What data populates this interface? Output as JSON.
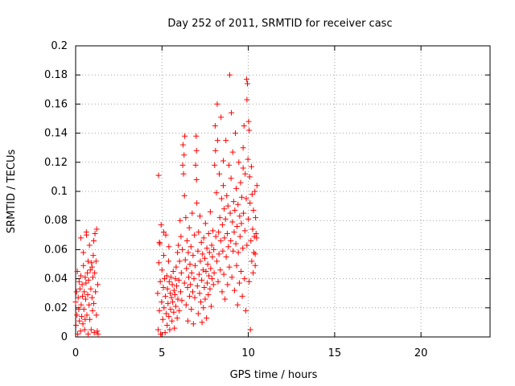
{
  "chart_data": {
    "type": "scatter",
    "title": "Day 252 of 2011, SRMTID for receiver casc",
    "xlabel": "GPS time / hours",
    "ylabel": "SRMTID / TECUs",
    "xlim": [
      0,
      24
    ],
    "ylim": [
      0,
      0.2
    ],
    "x_ticks": [
      0,
      5,
      10,
      15,
      20
    ],
    "x_tick_labels": [
      "0",
      "5",
      "10",
      "15",
      "20"
    ],
    "y_ticks": [
      0,
      0.02,
      0.04,
      0.06,
      0.08,
      0.1,
      0.12,
      0.14,
      0.16,
      0.18,
      0.2
    ],
    "y_tick_labels": [
      "0",
      "0.02",
      "0.04",
      "0.06",
      "0.08",
      "0.1",
      "0.12",
      "0.14",
      "0.16",
      "0.18",
      "0.2"
    ],
    "grid": true,
    "marker": "+",
    "colors": {
      "points": "#ff0000",
      "grid": "#a0a0a0",
      "axes": "#000000"
    },
    "series": [
      {
        "name": "SRMTID",
        "points": [
          [
            0.0,
            0.024
          ],
          [
            0.02,
            0.008
          ],
          [
            0.05,
            0.031
          ],
          [
            0.08,
            0.015
          ],
          [
            0.1,
            0.045
          ],
          [
            0.12,
            0.002
          ],
          [
            0.15,
            0.027
          ],
          [
            0.18,
            0.019
          ],
          [
            0.2,
            0.038
          ],
          [
            0.22,
            0.011
          ],
          [
            0.25,
            0.033
          ],
          [
            0.28,
            0.004
          ],
          [
            0.3,
            0.042
          ],
          [
            0.32,
            0.022
          ],
          [
            0.35,
            0.014
          ],
          [
            0.38,
            0.036
          ],
          [
            0.4,
            0.028
          ],
          [
            0.42,
            0.009
          ],
          [
            0.45,
            0.049
          ],
          [
            0.48,
            0.019
          ],
          [
            0.5,
            0.031
          ],
          [
            0.52,
            0.005
          ],
          [
            0.55,
            0.041
          ],
          [
            0.58,
            0.026
          ],
          [
            0.6,
            0.037
          ],
          [
            0.62,
            0.072
          ],
          [
            0.63,
            0.07
          ],
          [
            0.65,
            0.015
          ],
          [
            0.68,
            0.044
          ],
          [
            0.7,
            0.029
          ],
          [
            0.72,
            0.002
          ],
          [
            0.75,
            0.039
          ],
          [
            0.78,
            0.022
          ],
          [
            0.8,
            0.063
          ],
          [
            0.82,
            0.012
          ],
          [
            0.85,
            0.046
          ],
          [
            0.88,
            0.033
          ],
          [
            0.9,
            0.005
          ],
          [
            0.92,
            0.051
          ],
          [
            0.95,
            0.027
          ],
          [
            0.98,
            0.018
          ],
          [
            1.0,
            0.041
          ],
          [
            1.02,
            0.056
          ],
          [
            1.05,
            0.023
          ],
          [
            1.08,
            0.003
          ],
          [
            1.1,
            0.044
          ],
          [
            1.12,
            0.071
          ],
          [
            1.15,
            0.031
          ],
          [
            1.18,
            0.052
          ],
          [
            1.2,
            0.015
          ],
          [
            1.22,
            0.074
          ],
          [
            1.25,
            0.004
          ],
          [
            1.28,
            0.036
          ],
          [
            1.3,
            0.002
          ],
          [
            0.3,
            0.068
          ],
          [
            0.45,
            0.058
          ],
          [
            0.55,
            0.012
          ],
          [
            0.72,
            0.052
          ],
          [
            0.95,
            0.048
          ],
          [
            1.05,
            0.066
          ],
          [
            4.75,
            0.03
          ],
          [
            4.78,
            0.005
          ],
          [
            4.8,
            0.111
          ],
          [
            4.82,
            0.051
          ],
          [
            4.85,
            0.018
          ],
          [
            4.88,
            0.064
          ],
          [
            4.9,
            0.038
          ],
          [
            4.92,
            0.002
          ],
          [
            4.95,
            0.077
          ],
          [
            4.98,
            0.024
          ],
          [
            5.0,
            0.046
          ],
          [
            5.05,
            0.012
          ],
          [
            5.08,
            0.034
          ],
          [
            5.1,
            0.056
          ],
          [
            5.12,
            0.02
          ],
          [
            5.15,
            0.04
          ],
          [
            5.18,
            0.003
          ],
          [
            5.2,
            0.028
          ],
          [
            5.22,
            0.07
          ],
          [
            5.25,
            0.016
          ],
          [
            5.28,
            0.042
          ],
          [
            5.3,
            0.008
          ],
          [
            5.32,
            0.033
          ],
          [
            5.35,
            0.023
          ],
          [
            5.38,
            0.052
          ],
          [
            5.4,
            0.014
          ],
          [
            5.42,
            0.038
          ],
          [
            5.45,
            0.005
          ],
          [
            5.48,
            0.03
          ],
          [
            5.5,
            0.019
          ],
          [
            5.52,
            0.041
          ],
          [
            5.55,
            0.027
          ],
          [
            5.58,
            0.011
          ],
          [
            5.6,
            0.036
          ],
          [
            5.62,
            0.024
          ],
          [
            5.65,
            0.045
          ],
          [
            5.68,
            0.017
          ],
          [
            5.7,
            0.032
          ],
          [
            5.72,
            0.006
          ],
          [
            5.75,
            0.029
          ],
          [
            5.78,
            0.04
          ],
          [
            5.8,
            0.021
          ],
          [
            5.82,
            0.048
          ],
          [
            5.85,
            0.035
          ],
          [
            5.88,
            0.013
          ],
          [
            5.9,
            0.058
          ],
          [
            5.92,
            0.026
          ],
          [
            5.95,
            0.063
          ],
          [
            5.98,
            0.039
          ],
          [
            6.0,
            0.018
          ],
          [
            6.02,
            0.052
          ],
          [
            6.05,
            0.08
          ],
          [
            6.08,
            0.031
          ],
          [
            6.1,
            0.069
          ],
          [
            6.12,
            0.044
          ],
          [
            6.15,
            0.025
          ],
          [
            6.18,
            0.06
          ],
          [
            6.2,
            0.118
          ],
          [
            6.22,
            0.132
          ],
          [
            6.25,
            0.112
          ],
          [
            6.28,
            0.125
          ],
          [
            6.3,
            0.037
          ],
          [
            6.32,
            0.138
          ],
          [
            6.35,
            0.053
          ],
          [
            6.38,
            0.082
          ],
          [
            6.4,
            0.022
          ],
          [
            6.42,
            0.047
          ],
          [
            6.45,
            0.066
          ],
          [
            6.48,
            0.034
          ],
          [
            6.5,
            0.011
          ],
          [
            6.52,
            0.058
          ],
          [
            6.55,
            0.041
          ],
          [
            6.58,
            0.075
          ],
          [
            6.6,
            0.028
          ],
          [
            6.62,
            0.05
          ],
          [
            6.65,
            0.036
          ],
          [
            6.68,
            0.062
          ],
          [
            6.7,
            0.019
          ],
          [
            6.72,
            0.044
          ],
          [
            6.75,
            0.085
          ],
          [
            6.78,
            0.031
          ],
          [
            6.8,
            0.056
          ],
          [
            6.82,
            0.009
          ],
          [
            6.85,
            0.04
          ],
          [
            6.88,
            0.07
          ],
          [
            6.9,
            0.027
          ],
          [
            6.92,
            0.049
          ],
          [
            6.95,
            0.118
          ],
          [
            6.98,
            0.138
          ],
          [
            7.0,
            0.128
          ],
          [
            7.02,
            0.092
          ],
          [
            7.05,
            0.035
          ],
          [
            7.08,
            0.059
          ],
          [
            7.1,
            0.016
          ],
          [
            7.12,
            0.072
          ],
          [
            7.15,
            0.043
          ],
          [
            7.18,
            0.03
          ],
          [
            7.2,
            0.083
          ],
          [
            7.22,
            0.052
          ],
          [
            7.25,
            0.024
          ],
          [
            7.28,
            0.065
          ],
          [
            7.3,
            0.039
          ],
          [
            7.32,
            0.01
          ],
          [
            7.35,
            0.057
          ],
          [
            7.38,
            0.046
          ],
          [
            7.4,
            0.02
          ],
          [
            7.42,
            0.068
          ],
          [
            7.45,
            0.034
          ],
          [
            7.48,
            0.054
          ],
          [
            7.5,
            0.026
          ],
          [
            7.52,
            0.078
          ],
          [
            7.55,
            0.045
          ],
          [
            7.58,
            0.013
          ],
          [
            7.6,
            0.061
          ],
          [
            7.62,
            0.037
          ],
          [
            7.65,
            0.05
          ],
          [
            7.68,
            0.029
          ],
          [
            7.7,
            0.071
          ],
          [
            7.72,
            0.042
          ],
          [
            7.75,
            0.058
          ],
          [
            7.78,
            0.033
          ],
          [
            7.8,
            0.086
          ],
          [
            7.82,
            0.047
          ],
          [
            7.85,
            0.021
          ],
          [
            7.88,
            0.063
          ],
          [
            7.9,
            0.04
          ],
          [
            7.92,
            0.055
          ],
          [
            7.95,
            0.073
          ],
          [
            7.98,
            0.036
          ],
          [
            8.0,
            0.06
          ],
          [
            8.02,
            0.044
          ],
          [
            8.05,
            0.118
          ],
          [
            8.08,
            0.145
          ],
          [
            8.1,
            0.128
          ],
          [
            8.12,
            0.069
          ],
          [
            8.15,
            0.099
          ],
          [
            8.18,
            0.052
          ],
          [
            8.2,
            0.16
          ],
          [
            8.22,
            0.135
          ],
          [
            8.25,
            0.038
          ],
          [
            8.28,
            0.072
          ],
          [
            8.3,
            0.057
          ],
          [
            8.32,
            0.112
          ],
          [
            8.35,
            0.082
          ],
          [
            8.38,
            0.046
          ],
          [
            8.4,
            0.066
          ],
          [
            8.42,
            0.151
          ],
          [
            8.45,
            0.095
          ],
          [
            8.48,
            0.031
          ],
          [
            8.5,
            0.077
          ],
          [
            8.52,
            0.059
          ],
          [
            8.55,
            0.104
          ],
          [
            8.58,
            0.043
          ],
          [
            8.6,
            0.088
          ],
          [
            8.62,
            0.068
          ],
          [
            8.65,
            0.026
          ],
          [
            8.68,
            0.081
          ],
          [
            8.7,
            0.135
          ],
          [
            8.72,
            0.055
          ],
          [
            8.75,
            0.097
          ],
          [
            8.78,
            0.071
          ],
          [
            8.8,
            0.036
          ],
          [
            8.82,
            0.09
          ],
          [
            8.85,
            0.062
          ],
          [
            8.88,
            0.118
          ],
          [
            8.9,
            0.048
          ],
          [
            8.92,
            0.18
          ],
          [
            8.95,
            0.085
          ],
          [
            8.98,
            0.066
          ],
          [
            9.0,
            0.109
          ],
          [
            9.02,
            0.154
          ],
          [
            9.05,
            0.041
          ],
          [
            9.08,
            0.079
          ],
          [
            9.1,
            0.127
          ],
          [
            9.12,
            0.059
          ],
          [
            9.15,
            0.093
          ],
          [
            9.18,
            0.072
          ],
          [
            9.2,
            0.032
          ],
          [
            9.22,
            0.087
          ],
          [
            9.25,
            0.14
          ],
          [
            9.28,
            0.064
          ],
          [
            9.3,
            0.102
          ],
          [
            9.32,
            0.049
          ],
          [
            9.35,
            0.076
          ],
          [
            9.38,
            0.022
          ],
          [
            9.4,
            0.091
          ],
          [
            9.42,
            0.058
          ],
          [
            9.45,
            0.12
          ],
          [
            9.48,
            0.037
          ],
          [
            9.5,
            0.083
          ],
          [
            9.52,
            0.069
          ],
          [
            9.55,
            0.106
          ],
          [
            9.58,
            0.045
          ],
          [
            9.6,
            0.078
          ],
          [
            9.62,
            0.096
          ],
          [
            9.65,
            0.028
          ],
          [
            9.68,
            0.061
          ],
          [
            9.7,
            0.116
          ],
          [
            9.72,
            0.085
          ],
          [
            9.75,
            0.145
          ],
          [
            9.78,
            0.04
          ],
          [
            9.8,
            0.073
          ],
          [
            9.82,
            0.112
          ],
          [
            9.85,
            0.018
          ],
          [
            9.88,
            0.095
          ],
          [
            9.9,
            0.177
          ],
          [
            9.92,
            0.063
          ],
          [
            9.95,
            0.174
          ],
          [
            9.98,
            0.122
          ],
          [
            10.0,
            0.081
          ],
          [
            10.02,
            0.148
          ],
          [
            10.05,
            0.038
          ],
          [
            10.08,
            0.11
          ],
          [
            10.1,
            0.092
          ],
          [
            10.12,
            0.005
          ],
          [
            10.15,
            0.066
          ],
          [
            10.18,
            0.117
          ],
          [
            10.2,
            0.052
          ],
          [
            10.22,
            0.098
          ],
          [
            10.25,
            0.074
          ],
          [
            10.28,
            0.044
          ],
          [
            10.3,
            0.087
          ],
          [
            10.32,
            0.058
          ],
          [
            10.35,
            0.069
          ],
          [
            10.38,
            0.1
          ],
          [
            10.4,
            0.057
          ],
          [
            10.42,
            0.082
          ],
          [
            10.45,
            0.071
          ],
          [
            10.48,
            0.068
          ],
          [
            10.5,
            0.104
          ],
          [
            9.92,
            0.163
          ],
          [
            10.05,
            0.142
          ],
          [
            9.7,
            0.13
          ],
          [
            8.55,
            0.121
          ],
          [
            7.0,
            0.108
          ],
          [
            6.3,
            0.097
          ],
          [
            5.4,
            0.062
          ],
          [
            5.1,
            0.072
          ],
          [
            4.85,
            0.065
          ],
          [
            10.4,
            0.049
          ]
        ]
      }
    ]
  }
}
